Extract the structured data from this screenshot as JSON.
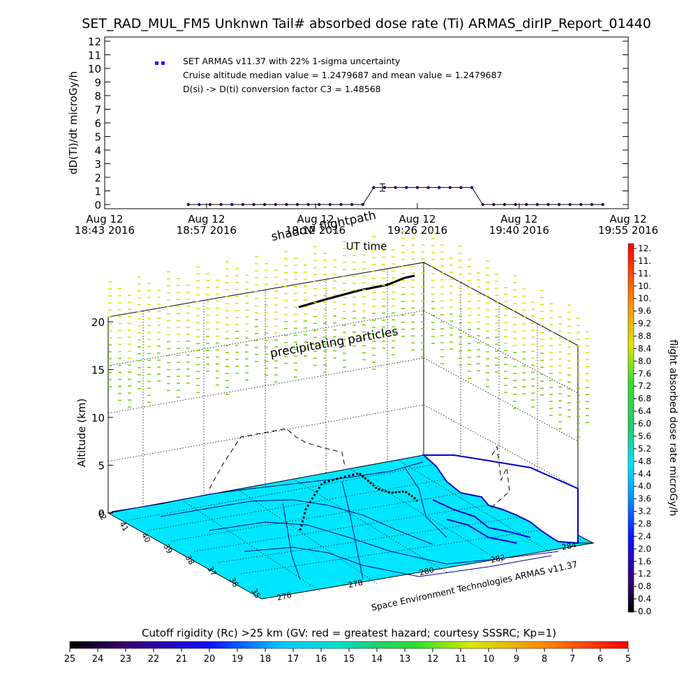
{
  "title": "SET_RAD_MUL_FM5 Unknwn Tail#  absorbed dose rate (Ti) ARMAS_dirIP_Report_01440",
  "chart_data": [
    {
      "type": "scatter",
      "ylabel": "dD(Ti)/dt microGy/h",
      "xlabel": "UT time",
      "ylim": [
        0,
        12
      ],
      "yticks": [
        "0",
        "1",
        "2",
        "3",
        "4",
        "5",
        "6",
        "7",
        "8",
        "9",
        "10",
        "11",
        "12"
      ],
      "xticks": [
        {
          "l1": "Aug 12",
          "l2": "18:43 2016",
          "t": 0
        },
        {
          "l1": "Aug 12",
          "l2": "18:57 2016",
          "t": 14
        },
        {
          "l1": "Aug 12",
          "l2": "19:12 2016",
          "t": 29
        },
        {
          "l1": "Aug 12",
          "l2": "19:26 2016",
          "t": 43
        },
        {
          "l1": "Aug 12",
          "l2": "19:40 2016",
          "t": 57
        },
        {
          "l1": "Aug 12",
          "l2": "19:55 2016",
          "t": 72
        }
      ],
      "xlim": [
        0,
        72
      ],
      "legend": {
        "entry": "SET ARMAS v11.37 with 22% 1-sigma uncertainty",
        "line2": "Cruise altitude median value = 1.2479687 and mean value = 1.2479687",
        "line3": "D(si) -> D(ti) conversion factor C3 = 1.48568",
        "position": "top-left"
      },
      "series": [
        {
          "color": "#1a1aff",
          "x": [
            11.5,
            13,
            14.5,
            16,
            17.5,
            19,
            20.5,
            22,
            23.5,
            25,
            26.5,
            28,
            29.5,
            31,
            32.5,
            34,
            35.5,
            37,
            38.5,
            40,
            41.5,
            43,
            44.5,
            46,
            47.5,
            49,
            50.5,
            52,
            53.5,
            55,
            56.5,
            58,
            59.5,
            61,
            62.5,
            64,
            65.5,
            67,
            68.5
          ],
          "y": [
            0,
            0,
            0,
            0,
            0,
            0,
            0,
            0,
            0,
            0,
            0,
            0,
            0,
            0,
            0,
            0,
            0,
            1.248,
            1.248,
            1.248,
            1.248,
            1.248,
            1.248,
            1.248,
            1.248,
            1.248,
            1.248,
            0,
            0,
            0,
            0,
            0,
            0,
            0,
            0,
            0,
            0,
            0,
            0
          ]
        }
      ],
      "error_bar": {
        "x": 38.2,
        "y": 1.248,
        "err": 0.27
      }
    },
    {
      "type": "scatter",
      "ylabel": "Altitude (km)",
      "zticks": [
        "0",
        "5",
        "10",
        "15",
        "20"
      ],
      "lat_ticks": [
        "42",
        "41",
        "40",
        "39",
        "38",
        "37",
        "36",
        "35"
      ],
      "lon_ticks": [
        "276",
        "278",
        "280",
        "282",
        "284"
      ],
      "annotations": [
        "shadow flightpath",
        "precipitating particles"
      ],
      "credit": "Space Environment Technologies ARMAS v11.37",
      "colorbar_right": {
        "label": "flight absorbed dose rate microGy/h",
        "ticks": [
          "0.0",
          "0.4",
          "0.8",
          "1.2",
          "1.6",
          "2.0",
          "2.4",
          "2.8",
          "3.2",
          "3.6",
          "4.0",
          "4.4",
          "4.8",
          "5.2",
          "5.6",
          "6.0",
          "6.4",
          "6.8",
          "7.2",
          "7.6",
          "8.0",
          "8.4",
          "8.8",
          "9.2",
          "9.6",
          "10.",
          "10.",
          "11.",
          "11.",
          "12."
        ]
      },
      "colorbar_bottom": {
        "label": "Cutoff rigidity (Rc) >25 km (GV: red = greatest hazard; courtesy SSSRC; Kp=1)",
        "ticks": [
          "25",
          "24",
          "23",
          "22",
          "21",
          "20",
          "19",
          "18",
          "17",
          "16",
          "15",
          "14",
          "13",
          "12",
          "11",
          "10",
          "9",
          "8",
          "7",
          "6",
          "5"
        ]
      }
    }
  ]
}
